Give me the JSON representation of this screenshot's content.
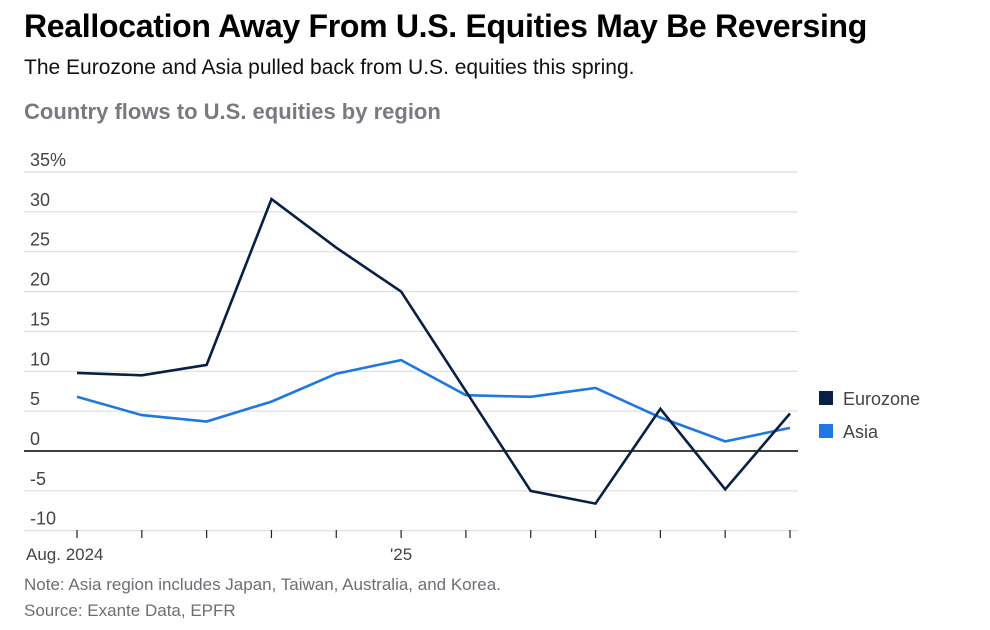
{
  "header": {
    "title": "Reallocation Away From U.S. Equities May Be Reversing",
    "subtitle": "The Eurozone and Asia pulled back from U.S. equities this spring.",
    "chart_title": "Country flows to U.S. equities by region"
  },
  "footer": {
    "note": "Note: Asia region includes Japan, Taiwan, Australia, and Korea.",
    "source": "Source: Exante Data, EPFR"
  },
  "chart_data": {
    "type": "line",
    "title": "Country flows to U.S. equities by region",
    "x": [
      "2024-08",
      "2024-09",
      "2024-10",
      "2024-11",
      "2024-12",
      "2025-01",
      "2025-02",
      "2025-03",
      "2025-04",
      "2025-05",
      "2025-06",
      "2025-07"
    ],
    "x_tick_labels": [
      "Aug. 2024",
      "",
      "",
      "",
      "",
      "'25",
      "",
      "",
      "",
      "",
      "",
      ""
    ],
    "y_tick_labels": [
      "35%",
      "30",
      "25",
      "20",
      "15",
      "10",
      "5",
      "0",
      "-5",
      "-10"
    ],
    "y_ticks": [
      35,
      30,
      25,
      20,
      15,
      10,
      5,
      0,
      -5,
      -10
    ],
    "ylim": [
      -10,
      35
    ],
    "ylabel": "",
    "xlabel": "",
    "grid": true,
    "legend_position": "right",
    "series": [
      {
        "name": "Eurozone",
        "color": "#0a1f44",
        "values": [
          9.8,
          9.5,
          10.8,
          31.6,
          25.5,
          20.0,
          7.5,
          -5.0,
          -6.6,
          5.3,
          -4.8,
          4.7
        ]
      },
      {
        "name": "Asia",
        "color": "#1f77e0",
        "values": [
          6.8,
          4.5,
          3.7,
          6.2,
          9.7,
          11.4,
          7.0,
          6.8,
          7.9,
          4.2,
          1.2,
          2.9
        ]
      }
    ]
  }
}
